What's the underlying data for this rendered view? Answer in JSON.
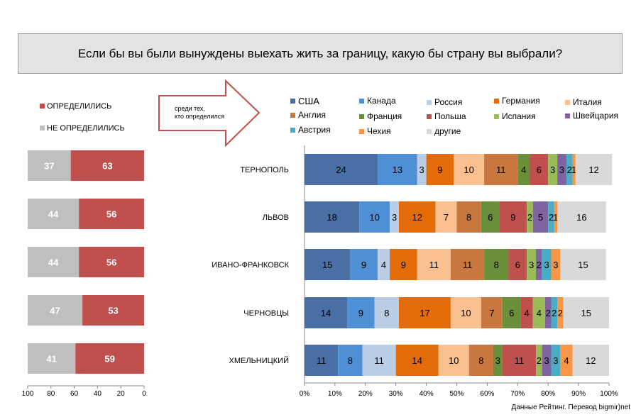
{
  "title": "Если бы вы были вынуждены выехать жить за границу, какую бы страну вы выбрали?",
  "arrow_note": [
    "среди тех,",
    "кто определился"
  ],
  "source": "Данные Рейтинг. Перевод bigmir)net",
  "colors": {
    "undecided": "#bfbfbf",
    "decided": "#c0504d"
  },
  "chart_data": [
    {
      "type": "bar",
      "orientation": "horizontal-stacked",
      "categories": [
        "ТЕРНОПОЛЬ",
        "ЛЬВОВ",
        "ИВАНО-ФРАНКОВСК",
        "ЧЕРНОВЦЫ",
        "ХМЕЛЬНИЦКИЙ"
      ],
      "series": [
        {
          "name": "НЕ ОПРЕДЕЛИЛИСЬ",
          "color": "#bfbfbf",
          "values": [
            37,
            44,
            44,
            47,
            41
          ]
        },
        {
          "name": "ОПРЕДЕЛИЛИСЬ",
          "color": "#c0504d",
          "values": [
            63,
            56,
            56,
            53,
            59
          ]
        }
      ],
      "xlim": [
        100,
        0
      ],
      "xticks": [
        "100",
        "80",
        "60",
        "40",
        "20",
        "0"
      ],
      "legend": "top-left"
    },
    {
      "type": "bar",
      "orientation": "horizontal-stacked-100",
      "categories": [
        "ТЕРНОПОЛЬ",
        "ЛЬВОВ",
        "ИВАНО-ФРАНКОВСК",
        "ЧЕРНОВЦЫ",
        "ХМЕЛЬНИЦКИЙ"
      ],
      "series": [
        {
          "name": "США",
          "color": "#4a6fa5",
          "values": [
            24,
            18,
            15,
            14,
            11
          ]
        },
        {
          "name": "Канада",
          "color": "#4f8fd6",
          "values": [
            13,
            10,
            9,
            9,
            8
          ]
        },
        {
          "name": "Россия",
          "color": "#b9cde5",
          "values": [
            3,
            3,
            4,
            8,
            11
          ]
        },
        {
          "name": "Германия",
          "color": "#e36c09",
          "values": [
            9,
            12,
            9,
            17,
            14
          ]
        },
        {
          "name": "Италия",
          "color": "#fac090",
          "values": [
            10,
            7,
            11,
            10,
            10
          ]
        },
        {
          "name": "Англия",
          "color": "#c8783e",
          "values": [
            11,
            8,
            11,
            7,
            8
          ]
        },
        {
          "name": "Франция",
          "color": "#6b8e3a",
          "values": [
            4,
            6,
            8,
            6,
            3
          ]
        },
        {
          "name": "Польша",
          "color": "#c0504d",
          "values": [
            6,
            9,
            6,
            4,
            11
          ]
        },
        {
          "name": "Испания",
          "color": "#9bbb59",
          "values": [
            3,
            2,
            3,
            4,
            2
          ]
        },
        {
          "name": "Швейцария",
          "color": "#8064a2",
          "values": [
            3,
            5,
            2,
            2,
            3
          ]
        },
        {
          "name": "Австрия",
          "color": "#4bacc6",
          "values": [
            2,
            2,
            3,
            2,
            3
          ]
        },
        {
          "name": "Чехия",
          "color": "#f79646",
          "values": [
            1,
            1,
            3,
            2,
            4
          ]
        },
        {
          "name": "другие",
          "color": "#d9d9d9",
          "values": [
            12,
            16,
            15,
            15,
            12
          ]
        }
      ],
      "xlim": [
        0,
        100
      ],
      "xticks": [
        "0%",
        "10%",
        "20%",
        "30%",
        "40%",
        "50%",
        "60%",
        "70%",
        "80%",
        "90%",
        "100%"
      ],
      "legend": "top"
    }
  ]
}
